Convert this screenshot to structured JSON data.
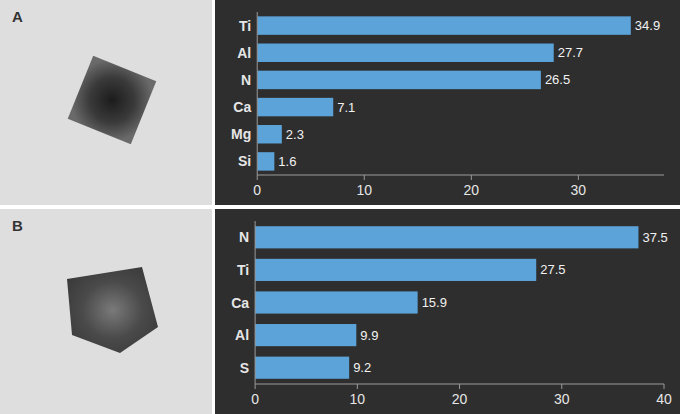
{
  "panel_labels": [
    "A",
    "B"
  ],
  "chart_data": [
    {
      "type": "bar",
      "orientation": "horizontal",
      "categories": [
        "Ti",
        "Al",
        "N",
        "Ca",
        "Mg",
        "Si"
      ],
      "values": [
        34.9,
        27.7,
        26.5,
        7.1,
        2.3,
        1.6
      ],
      "color": "#5ba3d9",
      "xlim": [
        0,
        38
      ],
      "xticks": [
        0,
        10,
        20,
        30
      ],
      "grid": false,
      "data_labels": true
    },
    {
      "type": "bar",
      "orientation": "horizontal",
      "categories": [
        "N",
        "Ti",
        "Ca",
        "Al",
        "S"
      ],
      "values": [
        37.5,
        27.5,
        15.9,
        9.9,
        9.2
      ],
      "color": "#5ba3d9",
      "xlim": [
        0,
        40
      ],
      "xticks": [
        0,
        10,
        20,
        30,
        40
      ],
      "grid": false,
      "data_labels": true
    }
  ]
}
